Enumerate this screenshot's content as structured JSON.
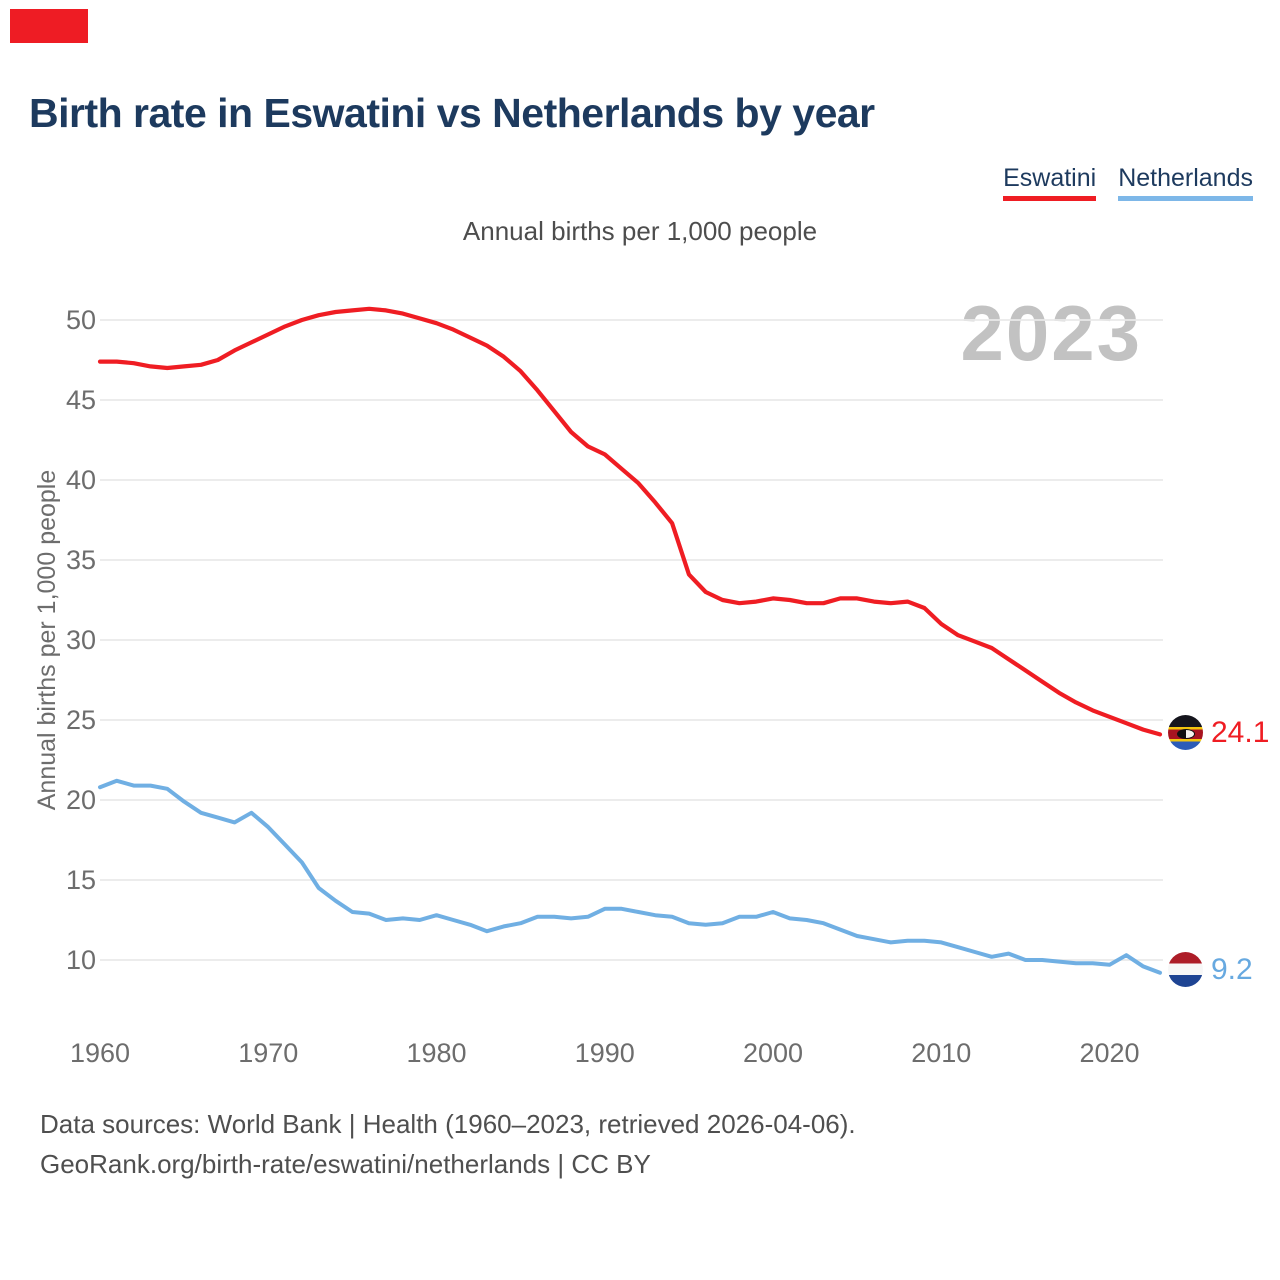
{
  "title": "Birth rate in Eswatini vs Netherlands by year",
  "subtitle": "Annual births per 1,000 people",
  "y_axis_title": "Annual births per 1,000 people",
  "watermark": "2023",
  "legend": [
    {
      "label": "Eswatini",
      "color": "#ef1d23"
    },
    {
      "label": "Netherlands",
      "color": "#7db7e8"
    }
  ],
  "end_labels": [
    {
      "series": "Eswatini",
      "value": "24.1",
      "color": "#ef1d23",
      "flag": "eswatini-flag-icon"
    },
    {
      "series": "Netherlands",
      "value": "9.2",
      "color": "#67a9e0",
      "flag": "netherlands-flag-icon"
    }
  ],
  "footer": {
    "line1": "Data sources: World Bank | Health (1960–2023, retrieved 2026-04-06).",
    "line2": "GeoRank.org/birth-rate/eswatini/netherlands | CC BY"
  },
  "theme": {
    "grid_color": "#e9e9e9",
    "tick_color": "#6d6d6d",
    "title_color": "#1d3a5e",
    "marker_color": "#ee1c24"
  },
  "chart_data": {
    "type": "line",
    "title": "Birth rate in Eswatini vs Netherlands by year",
    "ylabel": "Annual births per 1,000 people",
    "xlabel": "",
    "grid": "horizontal",
    "legend_position": "top-right",
    "x_range": [
      1960,
      2023
    ],
    "ylim": [
      8.5,
      52
    ],
    "y_ticks": [
      10,
      15,
      20,
      25,
      30,
      35,
      40,
      45,
      50
    ],
    "x_ticks": [
      1960,
      1970,
      1980,
      1990,
      2000,
      2010,
      2020
    ],
    "x": [
      1960,
      1961,
      1962,
      1963,
      1964,
      1965,
      1966,
      1967,
      1968,
      1969,
      1970,
      1971,
      1972,
      1973,
      1974,
      1975,
      1976,
      1977,
      1978,
      1979,
      1980,
      1981,
      1982,
      1983,
      1984,
      1985,
      1986,
      1987,
      1988,
      1989,
      1990,
      1991,
      1992,
      1993,
      1994,
      1995,
      1996,
      1997,
      1998,
      1999,
      2000,
      2001,
      2002,
      2003,
      2004,
      2005,
      2006,
      2007,
      2008,
      2009,
      2010,
      2011,
      2012,
      2013,
      2014,
      2015,
      2016,
      2017,
      2018,
      2019,
      2020,
      2021,
      2022,
      2023
    ],
    "series": [
      {
        "name": "Eswatini",
        "color": "#ef1d23",
        "width": 4.2,
        "final_value": 24.1,
        "values": [
          47.4,
          47.4,
          47.3,
          47.1,
          47.0,
          47.1,
          47.2,
          47.5,
          48.1,
          48.6,
          49.1,
          49.6,
          50.0,
          50.3,
          50.5,
          50.6,
          50.7,
          50.6,
          50.4,
          50.1,
          49.8,
          49.4,
          48.9,
          48.4,
          47.7,
          46.8,
          45.6,
          44.3,
          43.0,
          42.1,
          41.6,
          40.7,
          39.8,
          38.6,
          37.3,
          34.1,
          33.0,
          32.5,
          32.3,
          32.4,
          32.6,
          32.5,
          32.3,
          32.3,
          32.6,
          32.6,
          32.4,
          32.3,
          32.4,
          32.0,
          31.0,
          30.3,
          29.9,
          29.5,
          28.8,
          28.1,
          27.4,
          26.7,
          26.1,
          25.6,
          25.2,
          24.8,
          24.4,
          24.1
        ]
      },
      {
        "name": "Netherlands",
        "color": "#70afe3",
        "width": 4.0,
        "final_value": 9.2,
        "values": [
          20.8,
          21.2,
          20.9,
          20.9,
          20.7,
          19.9,
          19.2,
          18.9,
          18.6,
          19.2,
          18.3,
          17.2,
          16.1,
          14.5,
          13.7,
          13.0,
          12.9,
          12.5,
          12.6,
          12.5,
          12.8,
          12.5,
          12.2,
          11.8,
          12.1,
          12.3,
          12.7,
          12.7,
          12.6,
          12.7,
          13.2,
          13.2,
          13.0,
          12.8,
          12.7,
          12.3,
          12.2,
          12.3,
          12.7,
          12.7,
          13.0,
          12.6,
          12.5,
          12.3,
          11.9,
          11.5,
          11.3,
          11.1,
          11.2,
          11.2,
          11.1,
          10.8,
          10.5,
          10.2,
          10.4,
          10.0,
          10.0,
          9.9,
          9.8,
          9.8,
          9.7,
          10.3,
          9.6,
          9.2
        ]
      }
    ]
  }
}
